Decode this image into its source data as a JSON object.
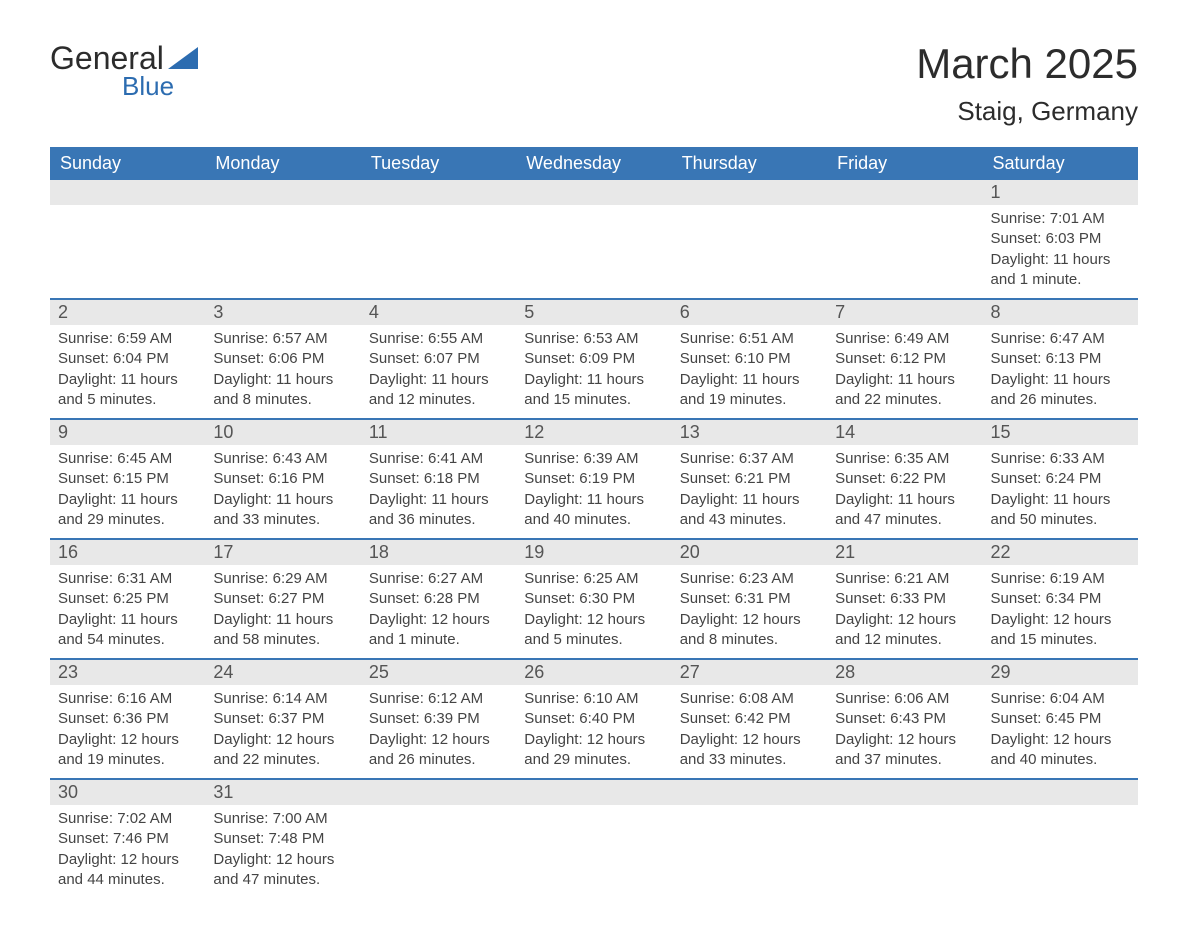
{
  "logo": {
    "general": "General",
    "blue": "Blue"
  },
  "title": "March 2025",
  "location": "Staig, Germany",
  "colors": {
    "header_bg": "#3976b5",
    "header_text": "#ffffff",
    "day_number_bg": "#e8e8e8",
    "day_number_color": "#555555",
    "border": "#3976b5",
    "content_text": "#444444",
    "title_text": "#2c2c2c",
    "logo_blue": "#2c6cb0"
  },
  "day_headers": [
    "Sunday",
    "Monday",
    "Tuesday",
    "Wednesday",
    "Thursday",
    "Friday",
    "Saturday"
  ],
  "weeks": [
    [
      {
        "num": "",
        "content": ""
      },
      {
        "num": "",
        "content": ""
      },
      {
        "num": "",
        "content": ""
      },
      {
        "num": "",
        "content": ""
      },
      {
        "num": "",
        "content": ""
      },
      {
        "num": "",
        "content": ""
      },
      {
        "num": "1",
        "sunrise": "Sunrise: 7:01 AM",
        "sunset": "Sunset: 6:03 PM",
        "daylight": "Daylight: 11 hours and 1 minute."
      }
    ],
    [
      {
        "num": "2",
        "sunrise": "Sunrise: 6:59 AM",
        "sunset": "Sunset: 6:04 PM",
        "daylight": "Daylight: 11 hours and 5 minutes."
      },
      {
        "num": "3",
        "sunrise": "Sunrise: 6:57 AM",
        "sunset": "Sunset: 6:06 PM",
        "daylight": "Daylight: 11 hours and 8 minutes."
      },
      {
        "num": "4",
        "sunrise": "Sunrise: 6:55 AM",
        "sunset": "Sunset: 6:07 PM",
        "daylight": "Daylight: 11 hours and 12 minutes."
      },
      {
        "num": "5",
        "sunrise": "Sunrise: 6:53 AM",
        "sunset": "Sunset: 6:09 PM",
        "daylight": "Daylight: 11 hours and 15 minutes."
      },
      {
        "num": "6",
        "sunrise": "Sunrise: 6:51 AM",
        "sunset": "Sunset: 6:10 PM",
        "daylight": "Daylight: 11 hours and 19 minutes."
      },
      {
        "num": "7",
        "sunrise": "Sunrise: 6:49 AM",
        "sunset": "Sunset: 6:12 PM",
        "daylight": "Daylight: 11 hours and 22 minutes."
      },
      {
        "num": "8",
        "sunrise": "Sunrise: 6:47 AM",
        "sunset": "Sunset: 6:13 PM",
        "daylight": "Daylight: 11 hours and 26 minutes."
      }
    ],
    [
      {
        "num": "9",
        "sunrise": "Sunrise: 6:45 AM",
        "sunset": "Sunset: 6:15 PM",
        "daylight": "Daylight: 11 hours and 29 minutes."
      },
      {
        "num": "10",
        "sunrise": "Sunrise: 6:43 AM",
        "sunset": "Sunset: 6:16 PM",
        "daylight": "Daylight: 11 hours and 33 minutes."
      },
      {
        "num": "11",
        "sunrise": "Sunrise: 6:41 AM",
        "sunset": "Sunset: 6:18 PM",
        "daylight": "Daylight: 11 hours and 36 minutes."
      },
      {
        "num": "12",
        "sunrise": "Sunrise: 6:39 AM",
        "sunset": "Sunset: 6:19 PM",
        "daylight": "Daylight: 11 hours and 40 minutes."
      },
      {
        "num": "13",
        "sunrise": "Sunrise: 6:37 AM",
        "sunset": "Sunset: 6:21 PM",
        "daylight": "Daylight: 11 hours and 43 minutes."
      },
      {
        "num": "14",
        "sunrise": "Sunrise: 6:35 AM",
        "sunset": "Sunset: 6:22 PM",
        "daylight": "Daylight: 11 hours and 47 minutes."
      },
      {
        "num": "15",
        "sunrise": "Sunrise: 6:33 AM",
        "sunset": "Sunset: 6:24 PM",
        "daylight": "Daylight: 11 hours and 50 minutes."
      }
    ],
    [
      {
        "num": "16",
        "sunrise": "Sunrise: 6:31 AM",
        "sunset": "Sunset: 6:25 PM",
        "daylight": "Daylight: 11 hours and 54 minutes."
      },
      {
        "num": "17",
        "sunrise": "Sunrise: 6:29 AM",
        "sunset": "Sunset: 6:27 PM",
        "daylight": "Daylight: 11 hours and 58 minutes."
      },
      {
        "num": "18",
        "sunrise": "Sunrise: 6:27 AM",
        "sunset": "Sunset: 6:28 PM",
        "daylight": "Daylight: 12 hours and 1 minute."
      },
      {
        "num": "19",
        "sunrise": "Sunrise: 6:25 AM",
        "sunset": "Sunset: 6:30 PM",
        "daylight": "Daylight: 12 hours and 5 minutes."
      },
      {
        "num": "20",
        "sunrise": "Sunrise: 6:23 AM",
        "sunset": "Sunset: 6:31 PM",
        "daylight": "Daylight: 12 hours and 8 minutes."
      },
      {
        "num": "21",
        "sunrise": "Sunrise: 6:21 AM",
        "sunset": "Sunset: 6:33 PM",
        "daylight": "Daylight: 12 hours and 12 minutes."
      },
      {
        "num": "22",
        "sunrise": "Sunrise: 6:19 AM",
        "sunset": "Sunset: 6:34 PM",
        "daylight": "Daylight: 12 hours and 15 minutes."
      }
    ],
    [
      {
        "num": "23",
        "sunrise": "Sunrise: 6:16 AM",
        "sunset": "Sunset: 6:36 PM",
        "daylight": "Daylight: 12 hours and 19 minutes."
      },
      {
        "num": "24",
        "sunrise": "Sunrise: 6:14 AM",
        "sunset": "Sunset: 6:37 PM",
        "daylight": "Daylight: 12 hours and 22 minutes."
      },
      {
        "num": "25",
        "sunrise": "Sunrise: 6:12 AM",
        "sunset": "Sunset: 6:39 PM",
        "daylight": "Daylight: 12 hours and 26 minutes."
      },
      {
        "num": "26",
        "sunrise": "Sunrise: 6:10 AM",
        "sunset": "Sunset: 6:40 PM",
        "daylight": "Daylight: 12 hours and 29 minutes."
      },
      {
        "num": "27",
        "sunrise": "Sunrise: 6:08 AM",
        "sunset": "Sunset: 6:42 PM",
        "daylight": "Daylight: 12 hours and 33 minutes."
      },
      {
        "num": "28",
        "sunrise": "Sunrise: 6:06 AM",
        "sunset": "Sunset: 6:43 PM",
        "daylight": "Daylight: 12 hours and 37 minutes."
      },
      {
        "num": "29",
        "sunrise": "Sunrise: 6:04 AM",
        "sunset": "Sunset: 6:45 PM",
        "daylight": "Daylight: 12 hours and 40 minutes."
      }
    ],
    [
      {
        "num": "30",
        "sunrise": "Sunrise: 7:02 AM",
        "sunset": "Sunset: 7:46 PM",
        "daylight": "Daylight: 12 hours and 44 minutes."
      },
      {
        "num": "31",
        "sunrise": "Sunrise: 7:00 AM",
        "sunset": "Sunset: 7:48 PM",
        "daylight": "Daylight: 12 hours and 47 minutes."
      },
      {
        "num": "",
        "content": ""
      },
      {
        "num": "",
        "content": ""
      },
      {
        "num": "",
        "content": ""
      },
      {
        "num": "",
        "content": ""
      },
      {
        "num": "",
        "content": ""
      }
    ]
  ]
}
